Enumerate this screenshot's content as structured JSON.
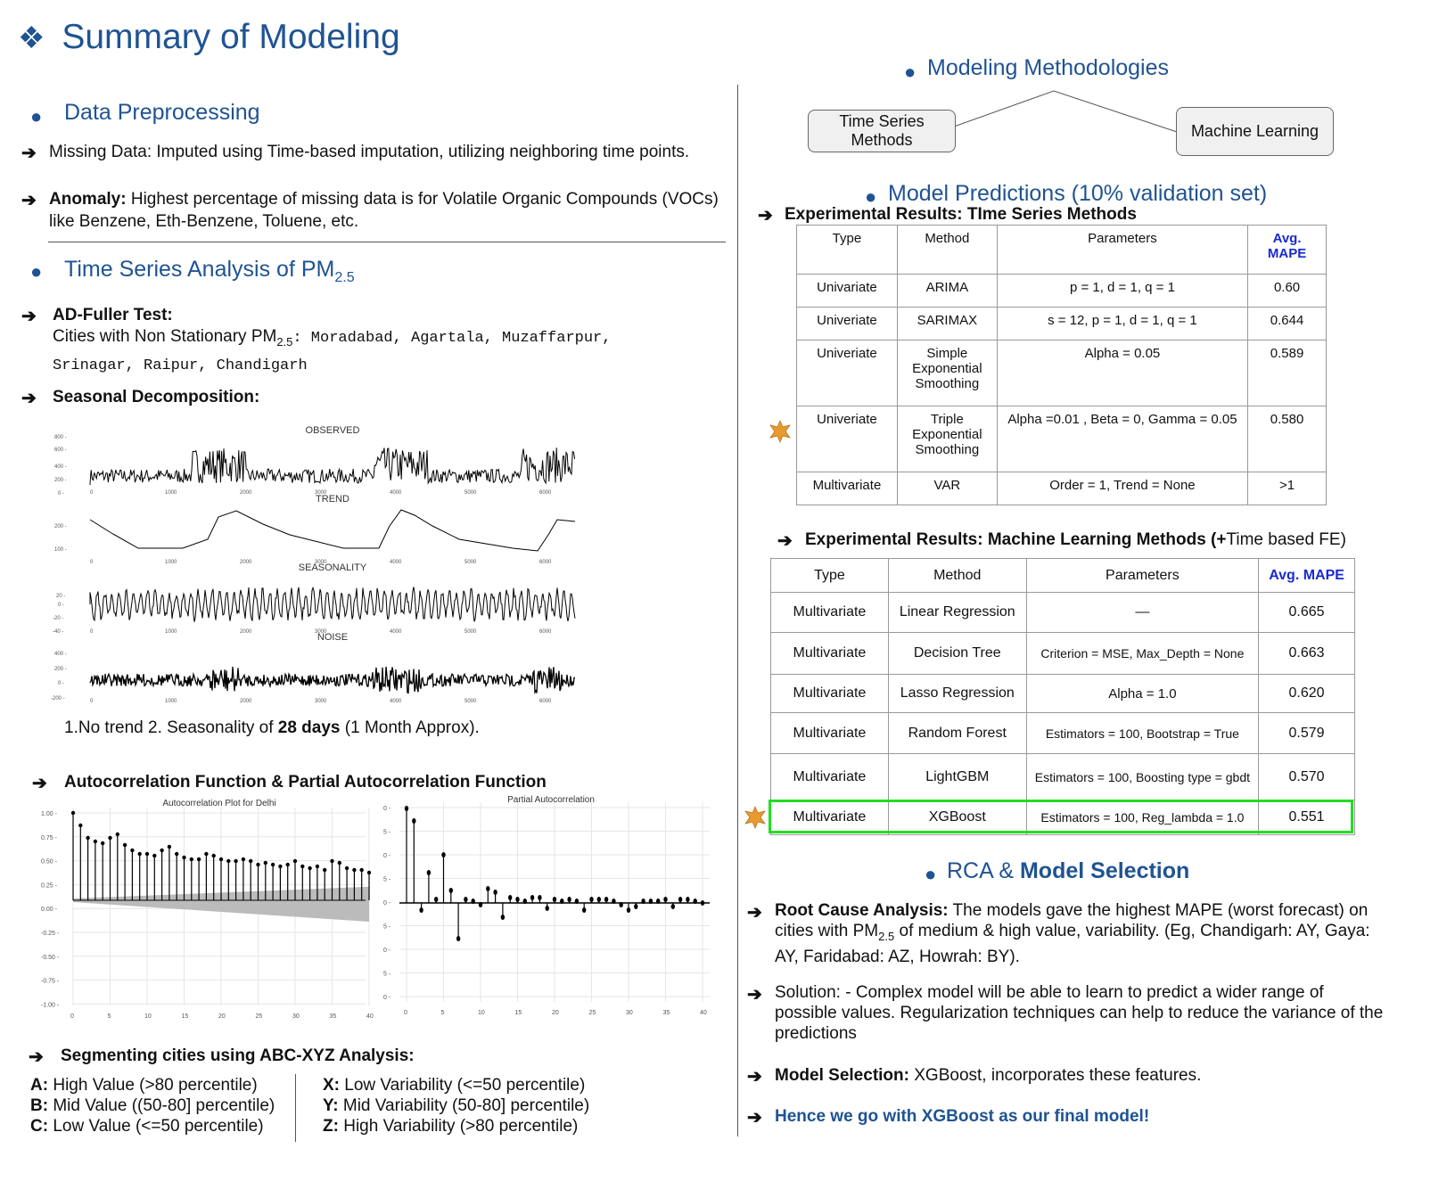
{
  "title": {
    "icon_glyph": "❖",
    "text": "Summary of Modeling"
  },
  "preprocessing": {
    "heading": "Data Preprocessing",
    "missing": "Missing Data: Imputed using Time-based imputation, utilizing neighboring time points.",
    "anomaly_label": "Anomaly:",
    "anomaly_text": " Highest percentage of missing data is for Volatile Organic Compounds (VOCs)",
    "anomaly_text2": "like Benzene, Eth-Benzene, Toluene, etc."
  },
  "tsa": {
    "heading": "Time Series Analysis of PM",
    "heading_sub": "2.5",
    "adf_label": "AD-Fuller Test:",
    "cities_prefix": "Cities with Non Stationary PM",
    "cities_sub": "2.5",
    "cities_line1": ": Moradabad, Agartala, Muzaffarpur,",
    "cities_line2": "Srinagar, Raipur, Chandigarh",
    "seasonal_label": "Seasonal Decomposition:",
    "decomp_titles": [
      "OBSERVED",
      "TREND",
      "SEASONALITY",
      "NOISE"
    ],
    "decomp_note_a": "1.No trend 2. Seasonality of ",
    "decomp_note_b": "28 days",
    "decomp_note_c": " (1 Month Approx).",
    "acf_label": "Autocorrelation Function & Partial Autocorrelation Function",
    "acf_title": "Autocorrelation Plot for Delhi",
    "pacf_title": "Partial Autocorrelation"
  },
  "abc": {
    "heading": "Segmenting cities using ABC-XYZ Analysis:",
    "left": [
      {
        "k": "A:",
        "v": " High Value (>80 percentile)"
      },
      {
        "k": "B:",
        "v": " Mid Value ((50-80] percentile)"
      },
      {
        "k": "C:",
        "v": " Low  Value (<=50  percentile)"
      }
    ],
    "right": [
      {
        "k": "X:",
        "v": " Low Variability (<=50 percentile)"
      },
      {
        "k": "Y:",
        "v": " Mid Variability (50-80] percentile)"
      },
      {
        "k": "Z:",
        "v": " High Variability  (>80 percentile)"
      }
    ]
  },
  "methodologies": {
    "heading": "Modeling Methodologies",
    "left_node": "Time Series Methods",
    "right_node": "Machine Learning"
  },
  "predictions": {
    "heading": "Model Predictions (10% validation set)",
    "ts_label": "Experimental Results: TIme Series Methods",
    "ts_headers": [
      "Type",
      "Method",
      "Parameters",
      "Avg. MAPE"
    ],
    "ts_rows": [
      [
        "Univariate",
        "ARIMA",
        "p = 1, d = 1, q = 1",
        "0.60"
      ],
      [
        "Univeriate",
        "SARIMAX",
        "s = 12, p = 1, d = 1, q = 1",
        "0.644"
      ],
      [
        "Univeriate",
        "Simple Exponential Smoothing",
        "Alpha = 0.05",
        "0.589"
      ],
      [
        "Univeriate",
        "Triple Exponential Smoothing",
        "Alpha =0.01 , Beta = 0, Gamma = 0.05",
        "0.580"
      ],
      [
        "Multivariate",
        "VAR",
        "Order = 1, Trend = None",
        ">1"
      ]
    ],
    "ml_label_a": "Experimental Results: Machine Learning Methods (+",
    "ml_label_b": "Time based FE)",
    "ml_headers": [
      "Type",
      "Method",
      "Parameters",
      "Avg. MAPE"
    ],
    "ml_rows": [
      [
        "Multivariate",
        "Linear Regression",
        "—",
        "0.665"
      ],
      [
        "Multivariate",
        "Decision Tree",
        "Criterion = MSE, Max_Depth = None",
        "0.663"
      ],
      [
        "Multivariate",
        "Lasso Regression",
        "Alpha = 1.0",
        "0.620"
      ],
      [
        "Multivariate",
        "Random Forest",
        "Estimators = 100, Bootstrap = True",
        "0.579"
      ],
      [
        "Multivariate",
        "LightGBM",
        "Estimators = 100, Boosting type = gbdt",
        "0.570"
      ],
      [
        "Multivariate",
        "XGBoost",
        "Estimators = 100, Reg_lambda = 1.0",
        "0.551"
      ]
    ]
  },
  "rca": {
    "heading_a": "RCA & ",
    "heading_b": "Model Selection",
    "rca_label": "Root Cause Analysis:",
    "rca_text1": " The models gave the highest MAPE (worst forecast)  on",
    "rca_text2a": "cities with PM",
    "rca_text2sub": "2.5",
    "rca_text2b": " of medium & high value, variability. (Eg, Chandigarh: AY, Gaya:",
    "rca_text3": "AY, Faridabad: AZ, Howrah: BY).",
    "solution1": "Solution: - Complex model will be able to learn to predict a wider range of",
    "solution2": "possible values. Regularization techniques can help to reduce the variance of the",
    "solution3": "predictions",
    "select_label": "Model Selection:",
    "select_text": " XGBoost, incorporates these features.",
    "final": "Hence we go with XGBoost as our final model!"
  },
  "colors": {
    "heading_blue": "#1f5393",
    "mape_blue": "#1a2ad0",
    "highlight": "#22dd22",
    "star": "#e99a2e"
  }
}
